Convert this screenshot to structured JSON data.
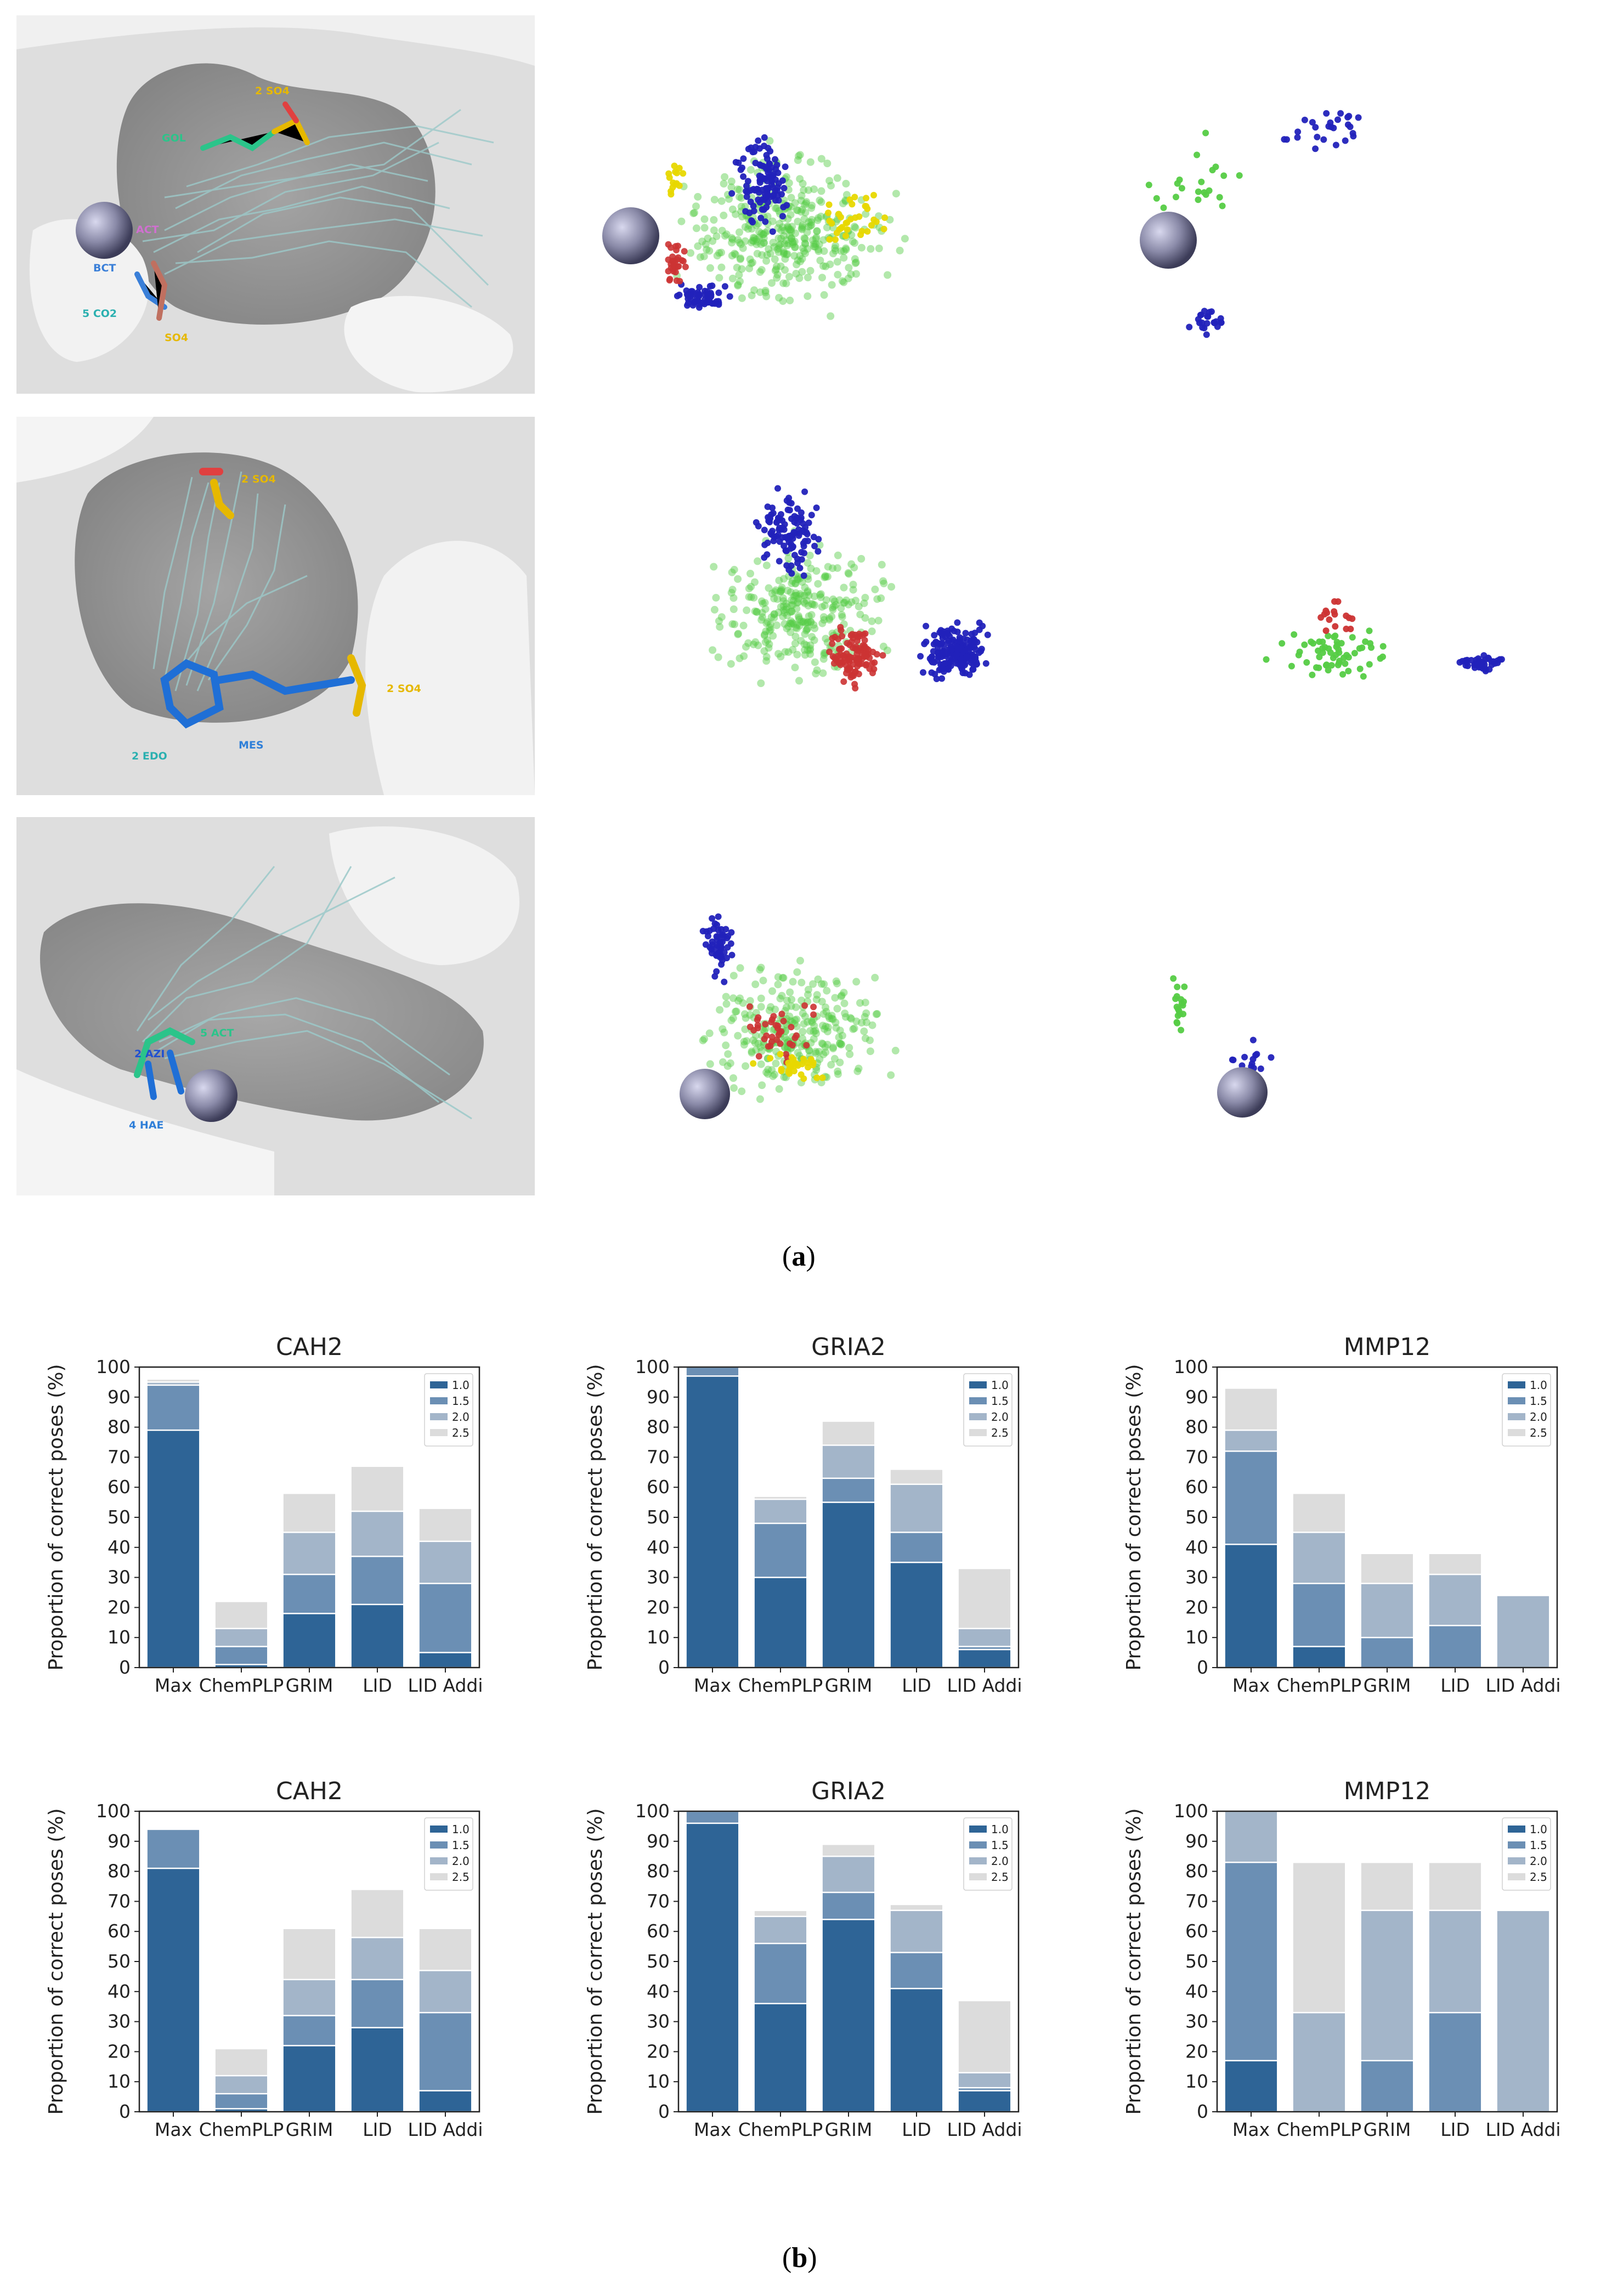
{
  "panel_labels": {
    "a": "a",
    "b": "b"
  },
  "molecule_panels": {
    "row1": {
      "labels": [
        "GOL",
        "2 SO4",
        "ACT",
        "BCT",
        "5 CO2",
        "SO4"
      ]
    },
    "row2": {
      "labels": [
        "2 SO4",
        "2 SO4",
        "2 EDO",
        "MES"
      ]
    },
    "row3": {
      "labels": [
        "2 AZI",
        "5 ACT",
        "4 HAE"
      ]
    }
  },
  "colors": {
    "level_1_0": "#2e6496",
    "level_1_5": "#6b8fb4",
    "level_2_0": "#a3b5c9",
    "level_2_5": "#dcdcdc",
    "surface": "#d9d9d9",
    "ligand_lines": "#9cc9c9",
    "dot_green": "#55cc44",
    "dot_blue": "#2222bb",
    "dot_red": "#cc3333",
    "dot_yellow": "#e8d800",
    "metal": "#8a8aa8"
  },
  "chart_data": [
    {
      "type": "bar",
      "title": "CAH2",
      "ylabel": "Proportion of correct poses (%)",
      "ylim": [
        0,
        100
      ],
      "categories": [
        "Max",
        "ChemPLP",
        "GRIM",
        "LID",
        "LID Addi"
      ],
      "legend": [
        "1.0",
        "1.5",
        "2.0",
        "2.5"
      ],
      "series": [
        {
          "name": "1.0",
          "values": [
            79,
            1,
            18,
            21,
            5
          ]
        },
        {
          "name": "1.5",
          "values": [
            94,
            7,
            31,
            37,
            28
          ]
        },
        {
          "name": "2.0",
          "values": [
            95,
            13,
            45,
            52,
            42
          ]
        },
        {
          "name": "2.5",
          "values": [
            96,
            22,
            58,
            67,
            53
          ]
        }
      ]
    },
    {
      "type": "bar",
      "title": "GRIA2",
      "ylabel": "Proportion of correct poses (%)",
      "ylim": [
        0,
        100
      ],
      "categories": [
        "Max",
        "ChemPLP",
        "GRIM",
        "LID",
        "LID Addi"
      ],
      "legend": [
        "1.0",
        "1.5",
        "2.0",
        "2.5"
      ],
      "series": [
        {
          "name": "1.0",
          "values": [
            97,
            30,
            55,
            35,
            6
          ]
        },
        {
          "name": "1.5",
          "values": [
            100,
            48,
            63,
            45,
            7
          ]
        },
        {
          "name": "2.0",
          "values": [
            100,
            56,
            74,
            61,
            13
          ]
        },
        {
          "name": "2.5",
          "values": [
            100,
            57,
            82,
            66,
            33
          ]
        }
      ]
    },
    {
      "type": "bar",
      "title": "MMP12",
      "ylabel": "Proportion of correct poses (%)",
      "ylim": [
        0,
        100
      ],
      "categories": [
        "Max",
        "ChemPLP",
        "GRIM",
        "LID",
        "LID Addi"
      ],
      "legend": [
        "1.0",
        "1.5",
        "2.0",
        "2.5"
      ],
      "series": [
        {
          "name": "1.0",
          "values": [
            41,
            7,
            0,
            0,
            0
          ]
        },
        {
          "name": "1.5",
          "values": [
            72,
            28,
            10,
            14,
            0
          ]
        },
        {
          "name": "2.0",
          "values": [
            79,
            45,
            28,
            31,
            24
          ]
        },
        {
          "name": "2.5",
          "values": [
            93,
            58,
            38,
            38,
            24
          ]
        }
      ]
    },
    {
      "type": "bar",
      "title": "CAH2",
      "ylabel": "Proportion of correct poses (%)",
      "ylim": [
        0,
        100
      ],
      "categories": [
        "Max",
        "ChemPLP",
        "GRIM",
        "LID",
        "LID Addi"
      ],
      "legend": [
        "1.0",
        "1.5",
        "2.0",
        "2.5"
      ],
      "series": [
        {
          "name": "1.0",
          "values": [
            81,
            1,
            22,
            28,
            7
          ]
        },
        {
          "name": "1.5",
          "values": [
            94,
            6,
            32,
            44,
            33
          ]
        },
        {
          "name": "2.0",
          "values": [
            94,
            12,
            44,
            58,
            47
          ]
        },
        {
          "name": "2.5",
          "values": [
            94,
            21,
            61,
            74,
            61
          ]
        }
      ]
    },
    {
      "type": "bar",
      "title": "GRIA2",
      "ylabel": "Proportion of correct poses (%)",
      "ylim": [
        0,
        100
      ],
      "categories": [
        "Max",
        "ChemPLP",
        "GRIM",
        "LID",
        "LID Addi"
      ],
      "legend": [
        "1.0",
        "1.5",
        "2.0",
        "2.5"
      ],
      "series": [
        {
          "name": "1.0",
          "values": [
            96,
            36,
            64,
            41,
            7
          ]
        },
        {
          "name": "1.5",
          "values": [
            100,
            56,
            73,
            53,
            8
          ]
        },
        {
          "name": "2.0",
          "values": [
            100,
            65,
            85,
            67,
            13
          ]
        },
        {
          "name": "2.5",
          "values": [
            100,
            67,
            89,
            69,
            37
          ]
        }
      ]
    },
    {
      "type": "bar",
      "title": "MMP12",
      "ylabel": "Proportion of correct poses (%)",
      "ylim": [
        0,
        100
      ],
      "categories": [
        "Max",
        "ChemPLP",
        "GRIM",
        "LID",
        "LID Addi"
      ],
      "legend": [
        "1.0",
        "1.5",
        "2.0",
        "2.5"
      ],
      "series": [
        {
          "name": "1.0",
          "values": [
            17,
            0,
            0,
            0,
            0
          ]
        },
        {
          "name": "1.5",
          "values": [
            83,
            0,
            17,
            33,
            0
          ]
        },
        {
          "name": "2.0",
          "values": [
            100,
            33,
            67,
            67,
            67
          ]
        },
        {
          "name": "2.5",
          "values": [
            100,
            83,
            83,
            83,
            67
          ]
        }
      ]
    }
  ]
}
